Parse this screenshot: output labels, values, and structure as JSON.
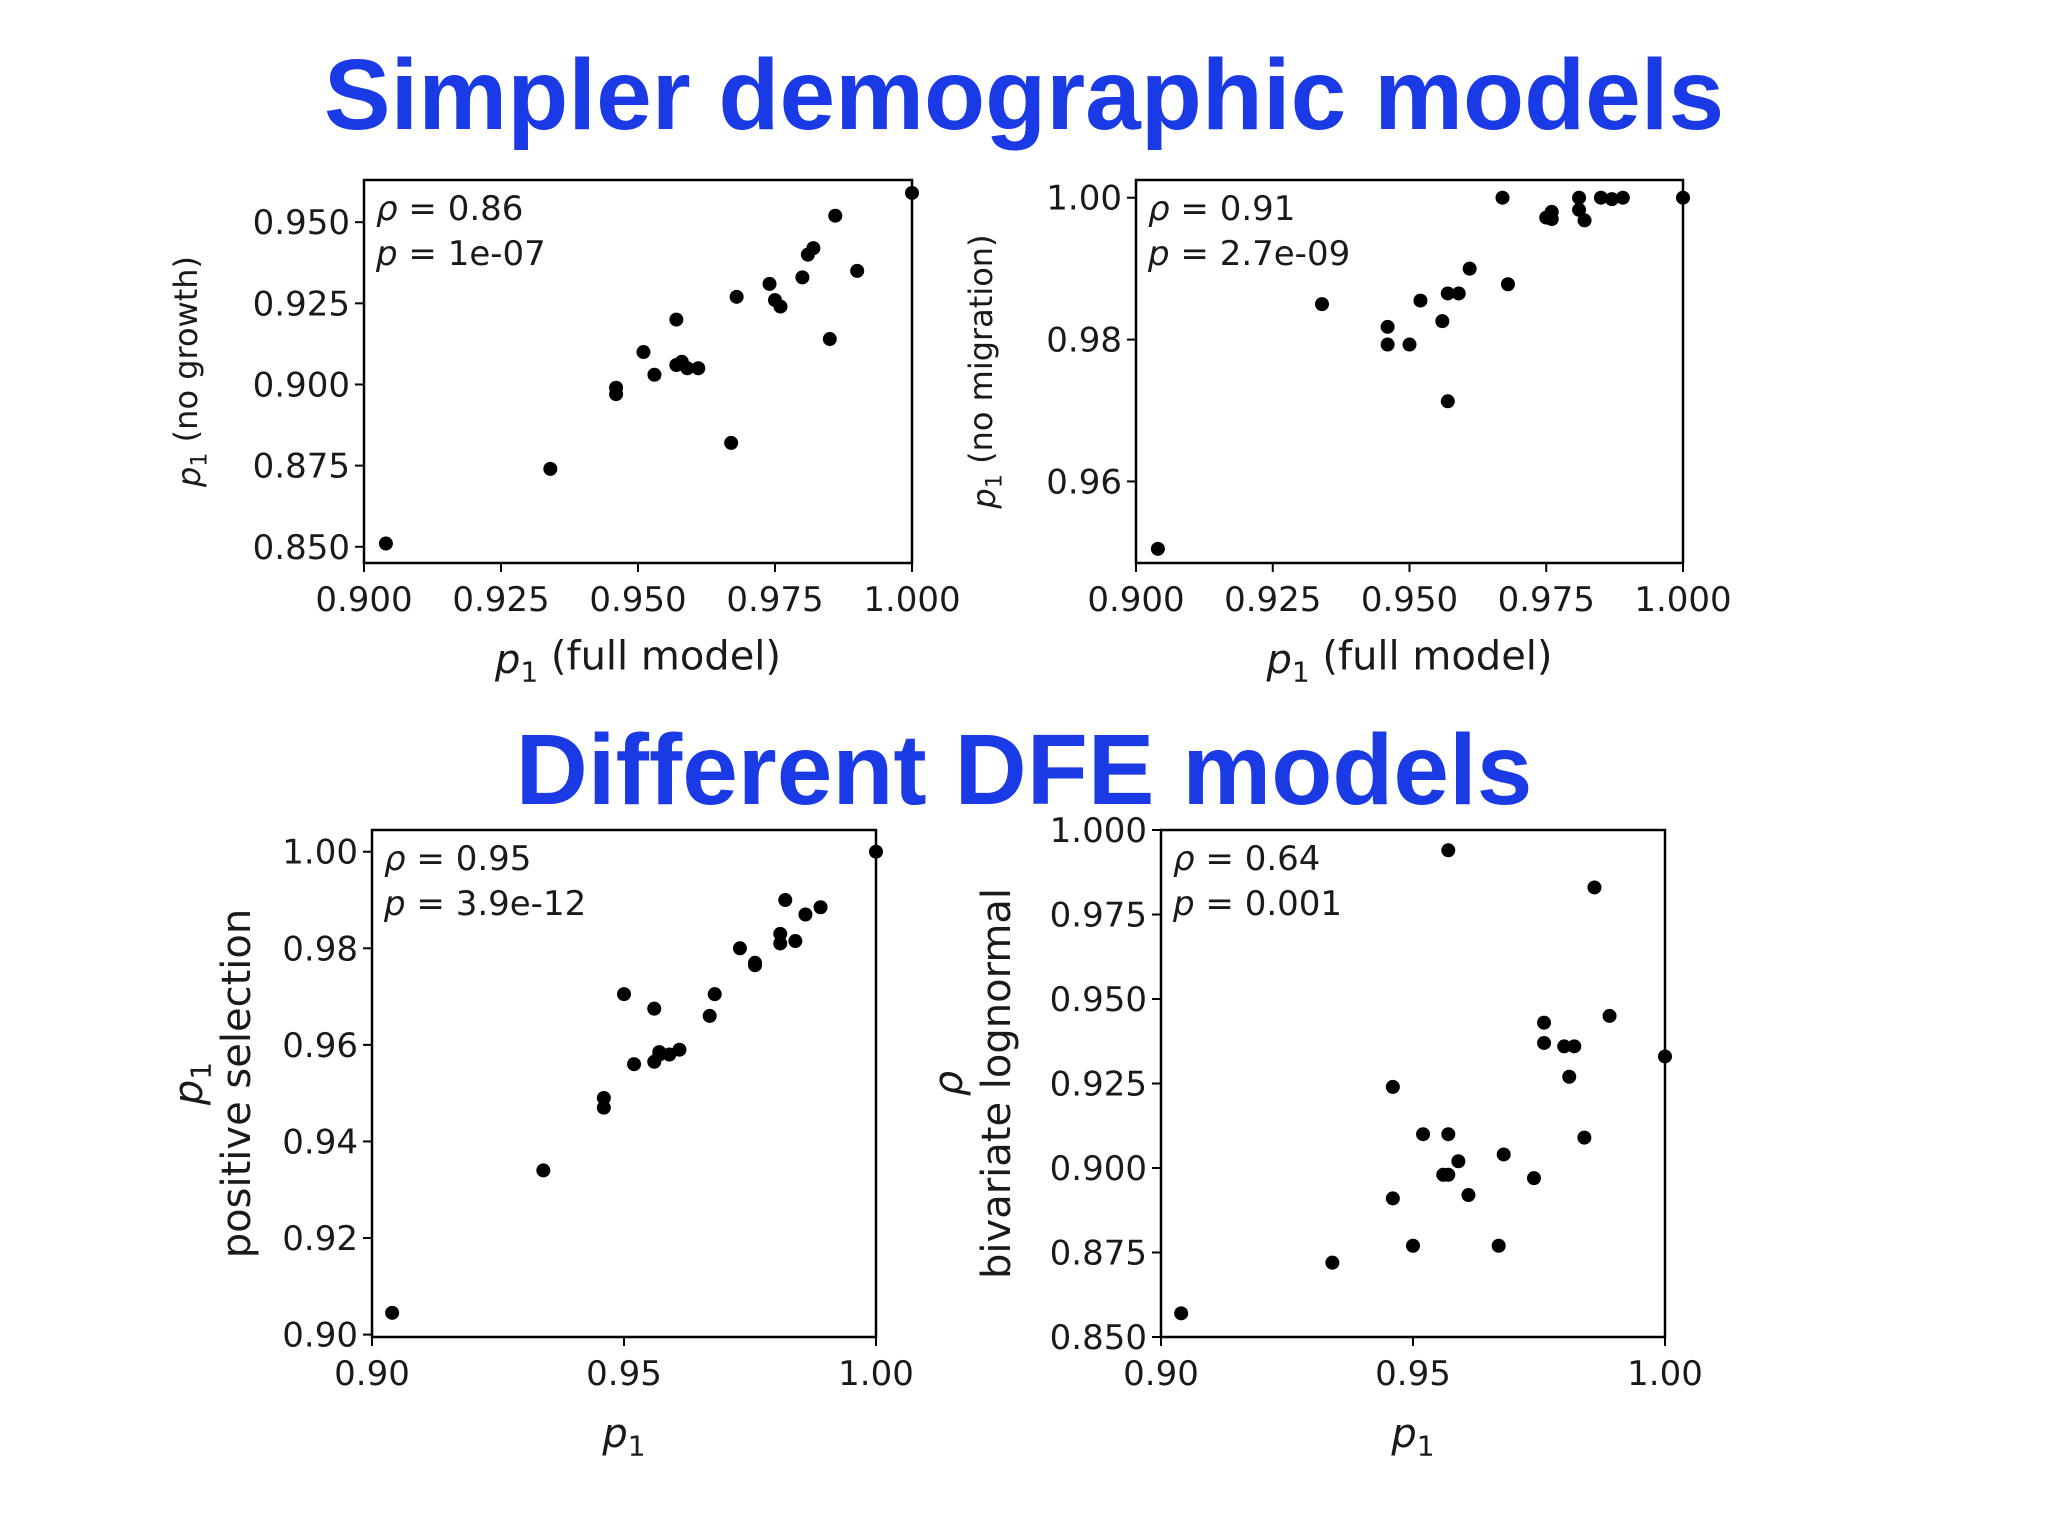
{
  "headings": {
    "top": "Simpler demographic models",
    "bottom": "Different DFE models"
  },
  "chart_data": [
    {
      "type": "scatter",
      "xlabel": "p1 (full model)",
      "ylabel": "p1 (no growth)",
      "xlim": [
        0.9,
        1.0
      ],
      "ylim": [
        0.845,
        0.963
      ],
      "xticks": [
        "0.900",
        "0.925",
        "0.950",
        "0.975",
        "1.000"
      ],
      "yticks": [
        "0.850",
        "0.875",
        "0.900",
        "0.925",
        "0.950"
      ],
      "annotation": [
        "ρ = 0.86",
        "p = 1e-07"
      ],
      "x": [
        0.904,
        0.934,
        0.946,
        0.946,
        0.951,
        0.953,
        0.957,
        0.957,
        0.958,
        0.959,
        0.961,
        0.967,
        0.968,
        0.974,
        0.975,
        0.976,
        0.98,
        0.981,
        0.982,
        0.985,
        0.986,
        0.99,
        1.0
      ],
      "y": [
        0.851,
        0.874,
        0.897,
        0.899,
        0.91,
        0.903,
        0.92,
        0.906,
        0.907,
        0.905,
        0.905,
        0.882,
        0.927,
        0.931,
        0.926,
        0.924,
        0.933,
        0.94,
        0.942,
        0.914,
        0.952,
        0.935,
        0.959
      ]
    },
    {
      "type": "scatter",
      "xlabel": "p1 (full model)",
      "ylabel": "p1 (no migration)",
      "xlim": [
        0.9,
        1.0
      ],
      "ylim": [
        0.9485,
        1.0025
      ],
      "xticks": [
        "0.900",
        "0.925",
        "0.950",
        "0.975",
        "1.000"
      ],
      "yticks": [
        "0.96",
        "0.98",
        "1.00"
      ],
      "annotation": [
        "ρ = 0.91",
        "p = 2.7e-09"
      ],
      "x": [
        0.904,
        0.934,
        0.946,
        0.946,
        0.95,
        0.952,
        0.956,
        0.957,
        0.957,
        0.959,
        0.961,
        0.967,
        0.968,
        0.975,
        0.976,
        0.976,
        0.981,
        0.981,
        0.982,
        0.985,
        0.987,
        0.989,
        1.0
      ],
      "y": [
        0.9505,
        0.985,
        0.9818,
        0.9793,
        0.9793,
        0.9855,
        0.9826,
        0.9865,
        0.9713,
        0.9865,
        0.99,
        1.0,
        0.9878,
        0.9972,
        0.998,
        0.997,
        0.9983,
        1.0,
        0.9968,
        1.0,
        0.9998,
        1.0,
        1.0
      ]
    },
    {
      "type": "scatter",
      "xlabel": "p1",
      "ylabel": [
        "p1",
        "positive selection"
      ],
      "xlim": [
        0.9,
        1.0
      ],
      "ylim": [
        0.8995,
        1.0045
      ],
      "xticks": [
        "0.90",
        "0.95",
        "1.00"
      ],
      "yticks": [
        "0.90",
        "0.92",
        "0.94",
        "0.96",
        "0.98",
        "1.00"
      ],
      "annotation": [
        "ρ = 0.95",
        "p = 3.9e-12"
      ],
      "x": [
        0.904,
        0.934,
        0.946,
        0.946,
        0.95,
        0.952,
        0.956,
        0.956,
        0.957,
        0.957,
        0.959,
        0.961,
        0.967,
        0.968,
        0.973,
        0.976,
        0.976,
        0.981,
        0.981,
        0.982,
        0.984,
        0.986,
        0.989,
        1.0
      ],
      "y": [
        0.9045,
        0.934,
        0.947,
        0.949,
        0.9705,
        0.956,
        0.9675,
        0.9565,
        0.958,
        0.9585,
        0.958,
        0.959,
        0.966,
        0.9705,
        0.98,
        0.977,
        0.9765,
        0.981,
        0.983,
        0.99,
        0.9815,
        0.987,
        0.9885,
        1.0
      ]
    },
    {
      "type": "scatter",
      "xlabel": "p1",
      "ylabel": [
        "ρ",
        "bivariate lognormal"
      ],
      "xlim": [
        0.9,
        1.0
      ],
      "ylim": [
        0.85,
        1.0
      ],
      "xticks": [
        "0.90",
        "0.95",
        "1.00"
      ],
      "yticks": [
        "0.850",
        "0.875",
        "0.900",
        "0.925",
        "0.950",
        "0.975",
        "1.000"
      ],
      "annotation": [
        "ρ = 0.64",
        "p = 0.001"
      ],
      "x": [
        0.904,
        0.934,
        0.946,
        0.946,
        0.95,
        0.952,
        0.956,
        0.957,
        0.957,
        0.959,
        0.961,
        0.967,
        0.968,
        0.974,
        0.976,
        0.976,
        0.98,
        0.981,
        0.982,
        0.984,
        0.986,
        0.989,
        1.0,
        0.957
      ],
      "y": [
        0.857,
        0.872,
        0.891,
        0.924,
        0.877,
        0.91,
        0.898,
        0.91,
        0.994,
        0.902,
        0.892,
        0.877,
        0.904,
        0.897,
        0.943,
        0.937,
        0.936,
        0.927,
        0.936,
        0.909,
        0.983,
        0.945,
        0.933,
        0.898
      ]
    }
  ]
}
